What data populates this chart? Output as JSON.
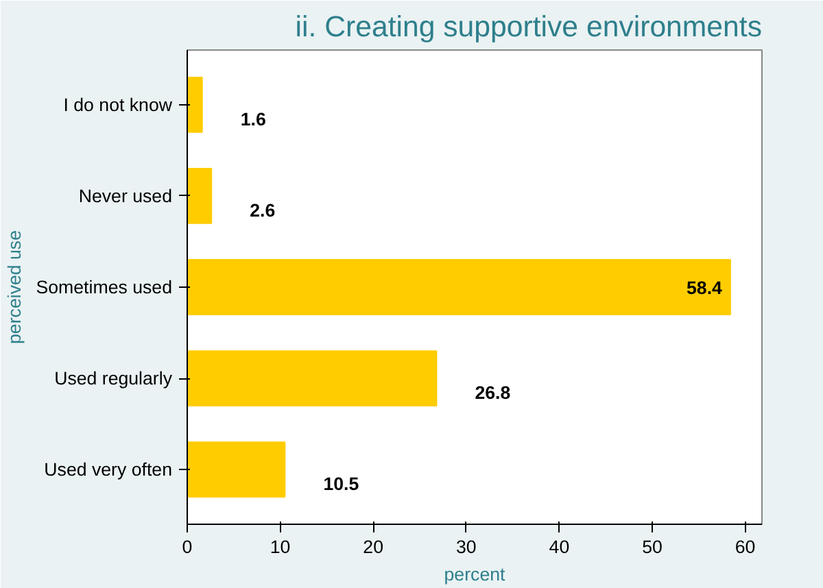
{
  "chart_data": {
    "type": "bar",
    "orientation": "horizontal",
    "title": "ii. Creating supportive environments",
    "xlabel": "percent",
    "ylabel": "perceived use",
    "categories": [
      "I do not know",
      "Never used",
      "Sometimes used",
      "Used regularly",
      "Used very often"
    ],
    "values": [
      1.6,
      2.6,
      58.4,
      26.8,
      10.5
    ],
    "color": "#ffcc00",
    "data_labels": true,
    "xlim": [
      0,
      61.8
    ],
    "xticks": [
      0,
      10,
      20,
      30,
      40,
      50,
      60
    ],
    "grid": false
  }
}
